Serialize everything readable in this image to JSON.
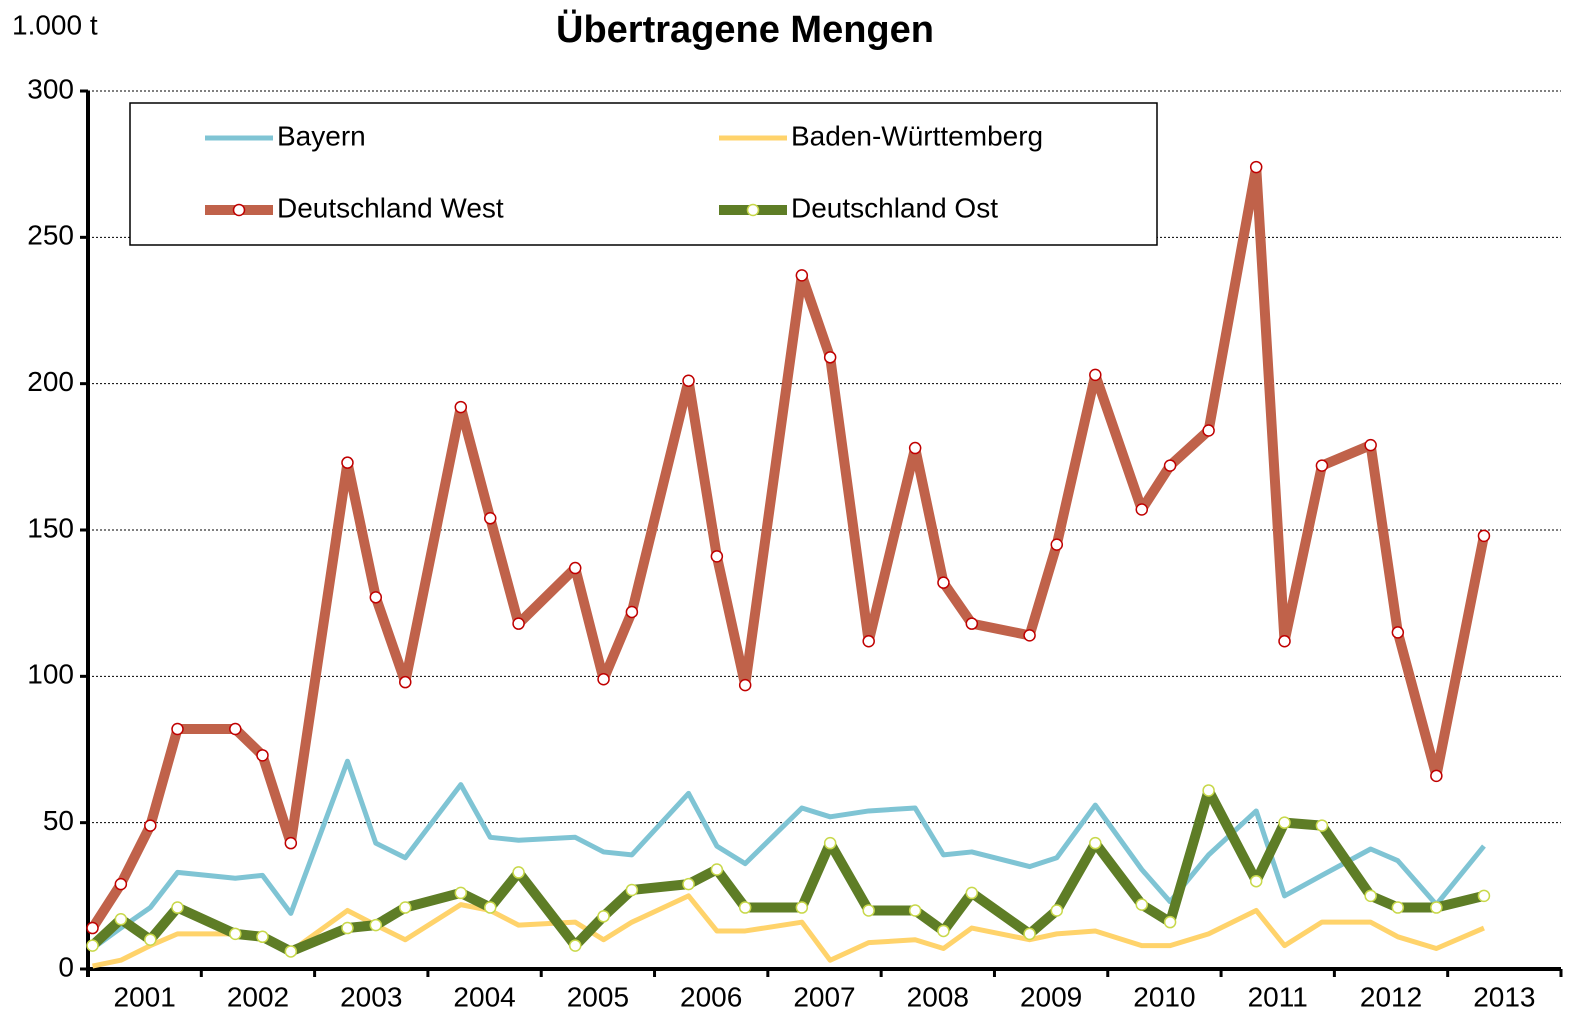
{
  "chart_data": {
    "type": "line",
    "title": "Übertragene Mengen",
    "y_label": "1.000 t",
    "x": [
      2001.04,
      2001.29,
      2001.55,
      2001.79,
      2002.3,
      2002.54,
      2002.79,
      2003.29,
      2003.54,
      2003.8,
      2004.29,
      2004.55,
      2004.8,
      2005.3,
      2005.55,
      2005.8,
      2006.3,
      2006.55,
      2006.8,
      2007.3,
      2007.55,
      2007.89,
      2008.3,
      2008.55,
      2008.8,
      2009.31,
      2009.55,
      2009.89,
      2010.3,
      2010.55,
      2010.89,
      2011.31,
      2011.56,
      2011.89,
      2012.32,
      2012.56,
      2012.9,
      2013.32
    ],
    "series": [
      {
        "name": "Bayern",
        "color": "#7fc4d4",
        "values": [
          7,
          14,
          21,
          33,
          31,
          32,
          19,
          71,
          43,
          38,
          63,
          45,
          44,
          45,
          40,
          39,
          60,
          42,
          36,
          55,
          52,
          54,
          55,
          39,
          40,
          35,
          38,
          56,
          34,
          23,
          39,
          54,
          25,
          32,
          41,
          37,
          22,
          42
        ]
      },
      {
        "name": "Baden-Württemberg",
        "color": "#ffd36b",
        "values": [
          1,
          3,
          8,
          12,
          12,
          12,
          6,
          20,
          15,
          10,
          22,
          20,
          15,
          16,
          10,
          16,
          25,
          13,
          13,
          16,
          3,
          9,
          10,
          7,
          14,
          10,
          12,
          13,
          8,
          8,
          12,
          20,
          8,
          16,
          16,
          11,
          7,
          14
        ]
      },
      {
        "name": "Deutschland West",
        "color": "#c0624a",
        "values": [
          14,
          29,
          49,
          82,
          82,
          73,
          43,
          173,
          127,
          98,
          192,
          154,
          118,
          137,
          99,
          122,
          201,
          141,
          97,
          237,
          209,
          112,
          178,
          132,
          118,
          114,
          145,
          203,
          157,
          172,
          184,
          274,
          112,
          172,
          179,
          115,
          66,
          148
        ]
      },
      {
        "name": "Deutschland Ost",
        "color": "#5e7d26",
        "values": [
          8,
          17,
          10,
          21,
          12,
          11,
          6,
          14,
          15,
          21,
          26,
          21,
          33,
          8,
          18,
          27,
          29,
          34,
          21,
          21,
          43,
          20,
          20,
          13,
          26,
          12,
          20,
          43,
          22,
          16,
          61,
          30,
          50,
          49,
          25,
          21,
          21,
          25
        ]
      }
    ],
    "xlim": [
      2001,
      2014
    ],
    "xticks": [
      2001,
      2002,
      2003,
      2004,
      2005,
      2006,
      2007,
      2008,
      2009,
      2010,
      2011,
      2012,
      2013,
      2014
    ],
    "xtick_labels": [
      {
        "value": 2001.5,
        "label": "2001"
      },
      {
        "value": 2002.5,
        "label": "2002"
      },
      {
        "value": 2003.5,
        "label": "2003"
      },
      {
        "value": 2004.5,
        "label": "2004"
      },
      {
        "value": 2005.5,
        "label": "2005"
      },
      {
        "value": 2006.5,
        "label": "2006"
      },
      {
        "value": 2007.5,
        "label": "2007"
      },
      {
        "value": 2008.5,
        "label": "2008"
      },
      {
        "value": 2009.5,
        "label": "2009"
      },
      {
        "value": 2010.5,
        "label": "2010"
      },
      {
        "value": 2011.5,
        "label": "2011"
      },
      {
        "value": 2012.5,
        "label": "2012"
      },
      {
        "value": 2013.5,
        "label": "2013"
      }
    ],
    "ylim": [
      0,
      300
    ],
    "yticks": [
      0,
      50,
      100,
      150,
      200,
      250,
      300
    ],
    "grid": true
  }
}
